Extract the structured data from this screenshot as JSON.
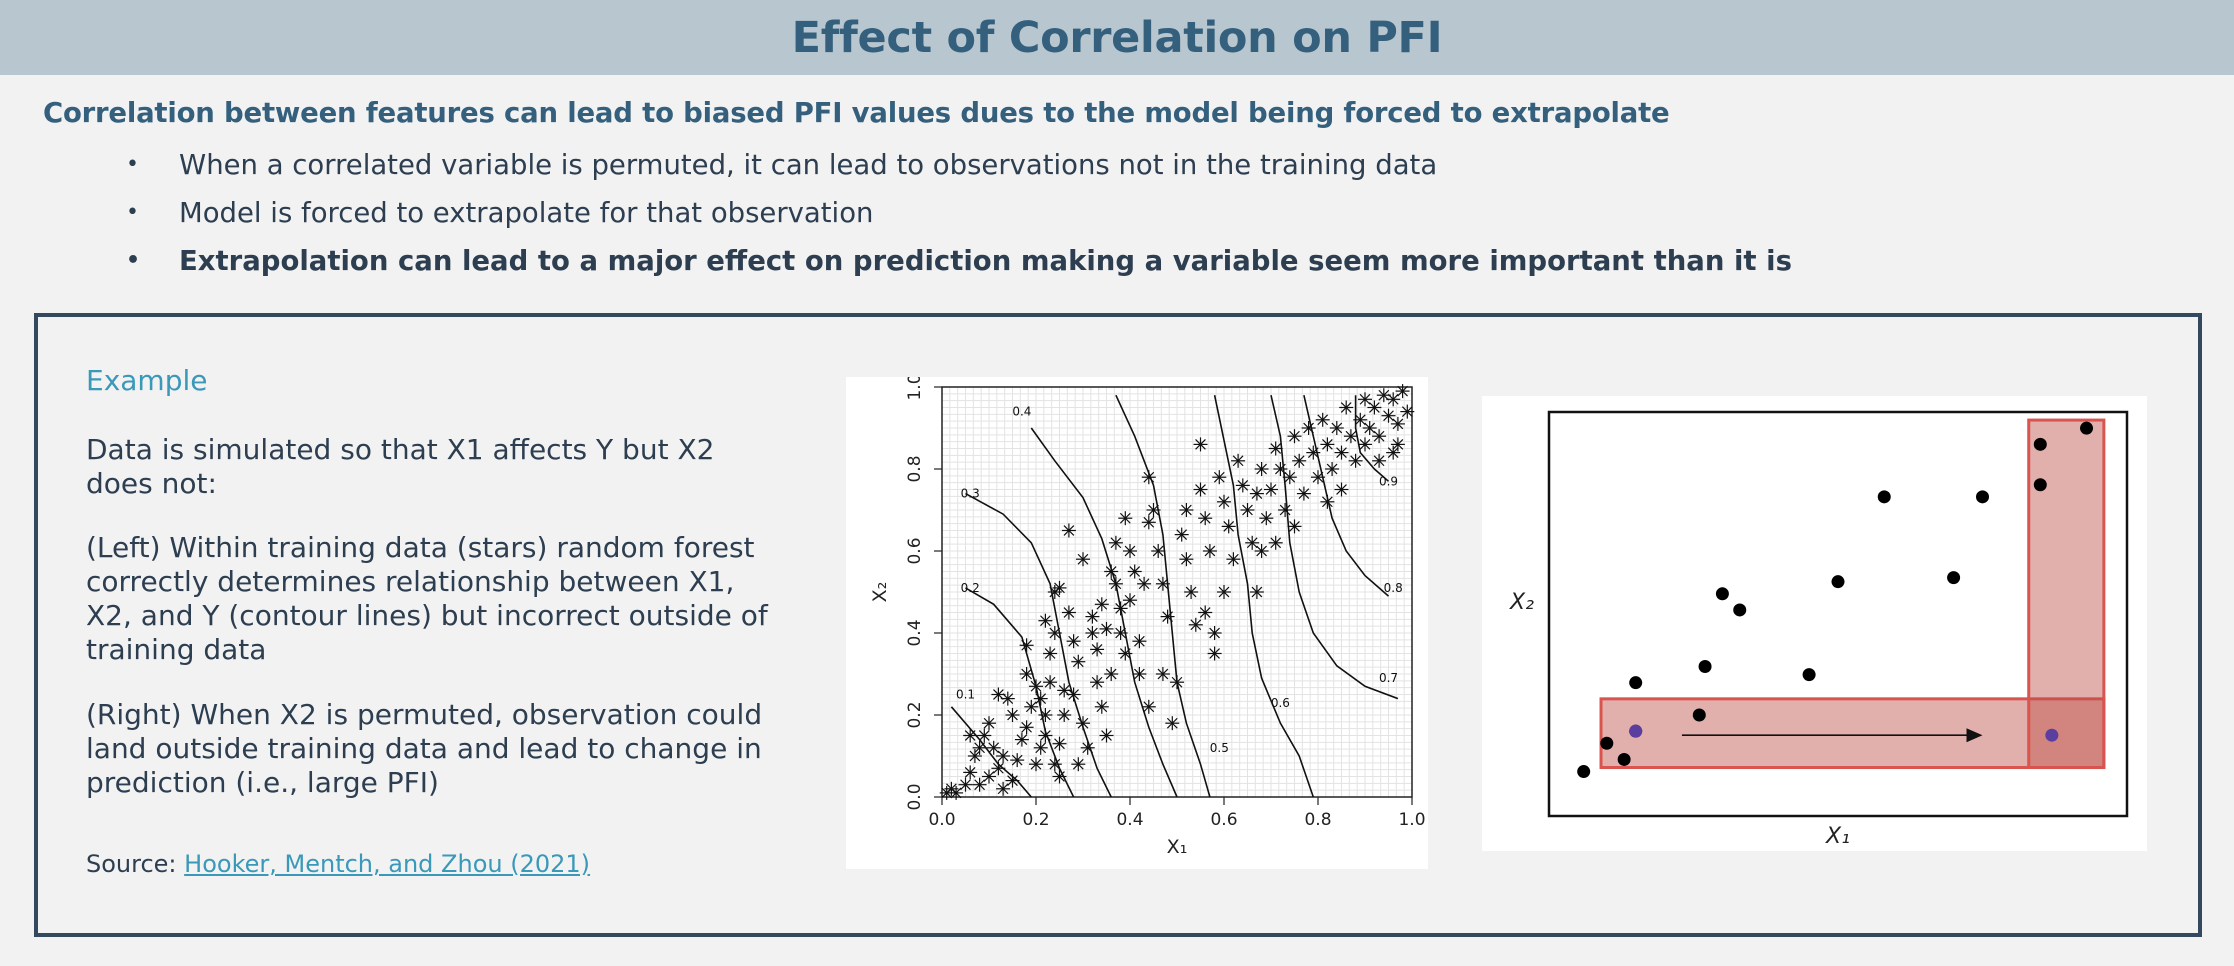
{
  "header": {
    "title": "Effect of Correlation on PFI"
  },
  "intro": {
    "subtitle": "Correlation between features can lead to biased PFI values dues to the model being forced to extrapolate",
    "bullets": [
      "When a correlated variable is permuted, it can lead to observations not in the training data",
      "Model is forced to extrapolate for that observation",
      "Extrapolation can lead to a major effect on prediction making a variable seem more important than it is"
    ],
    "bullet_symbol": "•"
  },
  "example": {
    "title": "Example",
    "para1": "Data is simulated so that X1 affects Y but X2 does not:",
    "para2": "(Left) Within training data (stars) random forest correctly determines relationship between X1, X2, and Y (contour lines) but incorrect outside of training data",
    "para3": "(Right) When X2 is permuted, observation could land outside training data and lead to change in prediction (i.e., large PFI)",
    "source_prefix": "Source: ",
    "source_link": "Hooker, Mentch, and Zhou (2021)"
  },
  "colors": {
    "header_bg": "#b8c7cf",
    "title_color": "#34607d",
    "accent_blue": "#3a98b9",
    "box_border": "#34495e",
    "highlight_red": "#d9534f",
    "permuted_point": "#5b3fa0"
  },
  "chart_data": [
    {
      "type": "scatter",
      "title": "",
      "xlabel": "X₁",
      "ylabel": "X₂",
      "xlim": [
        0,
        1
      ],
      "ylim": [
        0,
        1
      ],
      "xticks": [
        "0.0",
        "0.2",
        "0.4",
        "0.6",
        "0.8",
        "1.0"
      ],
      "yticks": [
        "0.0",
        "0.2",
        "0.4",
        "0.6",
        "0.8",
        "1.0"
      ],
      "marker": "star",
      "grid": true,
      "contour_labels": [
        {
          "label": "0.1",
          "x": 0.05,
          "y": 0.24
        },
        {
          "label": "0.2",
          "x": 0.06,
          "y": 0.5
        },
        {
          "label": "0.3",
          "x": 0.06,
          "y": 0.73
        },
        {
          "label": "0.4",
          "x": 0.17,
          "y": 0.93
        },
        {
          "label": "0.5",
          "x": 0.59,
          "y": 0.11
        },
        {
          "label": "0.6",
          "x": 0.72,
          "y": 0.22
        },
        {
          "label": "0.7",
          "x": 0.95,
          "y": 0.28
        },
        {
          "label": "0.8",
          "x": 0.96,
          "y": 0.5
        },
        {
          "label": "0.9",
          "x": 0.95,
          "y": 0.76
        }
      ],
      "contours": [
        [
          [
            0.02,
            0.22
          ],
          [
            0.08,
            0.14
          ],
          [
            0.12,
            0.08
          ],
          [
            0.16,
            0.04
          ],
          [
            0.19,
            0.0
          ]
        ],
        [
          [
            0.05,
            0.51
          ],
          [
            0.11,
            0.47
          ],
          [
            0.17,
            0.39
          ],
          [
            0.2,
            0.27
          ],
          [
            0.22,
            0.16
          ],
          [
            0.25,
            0.07
          ],
          [
            0.28,
            0.0
          ]
        ],
        [
          [
            0.05,
            0.74
          ],
          [
            0.13,
            0.69
          ],
          [
            0.19,
            0.62
          ],
          [
            0.23,
            0.52
          ],
          [
            0.25,
            0.4
          ],
          [
            0.27,
            0.28
          ],
          [
            0.3,
            0.17
          ],
          [
            0.33,
            0.07
          ],
          [
            0.36,
            0.0
          ]
        ],
        [
          [
            0.19,
            0.9
          ],
          [
            0.24,
            0.82
          ],
          [
            0.3,
            0.73
          ],
          [
            0.34,
            0.63
          ],
          [
            0.37,
            0.52
          ],
          [
            0.39,
            0.4
          ],
          [
            0.41,
            0.28
          ],
          [
            0.44,
            0.17
          ],
          [
            0.47,
            0.08
          ],
          [
            0.5,
            0.0
          ]
        ],
        [
          [
            0.37,
            0.98
          ],
          [
            0.41,
            0.88
          ],
          [
            0.45,
            0.76
          ],
          [
            0.47,
            0.64
          ],
          [
            0.48,
            0.52
          ],
          [
            0.49,
            0.4
          ],
          [
            0.5,
            0.28
          ],
          [
            0.52,
            0.18
          ],
          [
            0.55,
            0.08
          ],
          [
            0.57,
            0.0
          ]
        ],
        [
          [
            0.58,
            0.98
          ],
          [
            0.6,
            0.87
          ],
          [
            0.62,
            0.76
          ],
          [
            0.63,
            0.64
          ],
          [
            0.65,
            0.52
          ],
          [
            0.66,
            0.4
          ],
          [
            0.68,
            0.29
          ],
          [
            0.72,
            0.18
          ],
          [
            0.76,
            0.1
          ],
          [
            0.79,
            0.0
          ]
        ],
        [
          [
            0.7,
            0.98
          ],
          [
            0.72,
            0.88
          ],
          [
            0.73,
            0.76
          ],
          [
            0.74,
            0.62
          ],
          [
            0.76,
            0.5
          ],
          [
            0.79,
            0.4
          ],
          [
            0.84,
            0.32
          ],
          [
            0.9,
            0.27
          ],
          [
            0.97,
            0.24
          ]
        ],
        [
          [
            0.77,
            0.98
          ],
          [
            0.79,
            0.88
          ],
          [
            0.81,
            0.78
          ],
          [
            0.83,
            0.68
          ],
          [
            0.86,
            0.6
          ],
          [
            0.9,
            0.54
          ],
          [
            0.95,
            0.49
          ]
        ],
        [
          [
            0.88,
            0.98
          ],
          [
            0.88,
            0.9
          ],
          [
            0.89,
            0.84
          ],
          [
            0.92,
            0.8
          ],
          [
            0.95,
            0.77
          ]
        ]
      ],
      "points": [
        [
          0.01,
          0.01
        ],
        [
          0.02,
          0.02
        ],
        [
          0.03,
          0.01
        ],
        [
          0.05,
          0.03
        ],
        [
          0.06,
          0.06
        ],
        [
          0.07,
          0.1
        ],
        [
          0.08,
          0.12
        ],
        [
          0.06,
          0.15
        ],
        [
          0.09,
          0.15
        ],
        [
          0.1,
          0.18
        ],
        [
          0.08,
          0.03
        ],
        [
          0.1,
          0.05
        ],
        [
          0.12,
          0.07
        ],
        [
          0.11,
          0.12
        ],
        [
          0.13,
          0.1
        ],
        [
          0.12,
          0.25
        ],
        [
          0.14,
          0.24
        ],
        [
          0.15,
          0.2
        ],
        [
          0.13,
          0.02
        ],
        [
          0.15,
          0.04
        ],
        [
          0.16,
          0.09
        ],
        [
          0.17,
          0.14
        ],
        [
          0.18,
          0.17
        ],
        [
          0.19,
          0.22
        ],
        [
          0.18,
          0.3
        ],
        [
          0.2,
          0.27
        ],
        [
          0.21,
          0.24
        ],
        [
          0.2,
          0.08
        ],
        [
          0.21,
          0.12
        ],
        [
          0.22,
          0.15
        ],
        [
          0.22,
          0.2
        ],
        [
          0.23,
          0.28
        ],
        [
          0.23,
          0.35
        ],
        [
          0.24,
          0.4
        ],
        [
          0.22,
          0.43
        ],
        [
          0.24,
          0.08
        ],
        [
          0.25,
          0.05
        ],
        [
          0.25,
          0.13
        ],
        [
          0.26,
          0.2
        ],
        [
          0.26,
          0.26
        ],
        [
          0.24,
          0.5
        ],
        [
          0.25,
          0.51
        ],
        [
          0.27,
          0.45
        ],
        [
          0.28,
          0.38
        ],
        [
          0.29,
          0.33
        ],
        [
          0.28,
          0.25
        ],
        [
          0.3,
          0.18
        ],
        [
          0.31,
          0.12
        ],
        [
          0.29,
          0.08
        ],
        [
          0.32,
          0.4
        ],
        [
          0.33,
          0.36
        ],
        [
          0.32,
          0.44
        ],
        [
          0.34,
          0.47
        ],
        [
          0.35,
          0.41
        ],
        [
          0.33,
          0.28
        ],
        [
          0.34,
          0.22
        ],
        [
          0.35,
          0.15
        ],
        [
          0.36,
          0.55
        ],
        [
          0.37,
          0.52
        ],
        [
          0.38,
          0.46
        ],
        [
          0.38,
          0.4
        ],
        [
          0.39,
          0.35
        ],
        [
          0.37,
          0.62
        ],
        [
          0.39,
          0.68
        ],
        [
          0.4,
          0.6
        ],
        [
          0.41,
          0.55
        ],
        [
          0.4,
          0.48
        ],
        [
          0.42,
          0.38
        ],
        [
          0.42,
          0.3
        ],
        [
          0.44,
          0.22
        ],
        [
          0.43,
          0.52
        ],
        [
          0.45,
          0.7
        ],
        [
          0.44,
          0.78
        ],
        [
          0.46,
          0.6
        ],
        [
          0.47,
          0.52
        ],
        [
          0.48,
          0.44
        ],
        [
          0.5,
          0.28
        ],
        [
          0.49,
          0.18
        ],
        [
          0.51,
          0.64
        ],
        [
          0.52,
          0.58
        ],
        [
          0.53,
          0.5
        ],
        [
          0.54,
          0.42
        ],
        [
          0.52,
          0.7
        ],
        [
          0.55,
          0.75
        ],
        [
          0.56,
          0.68
        ],
        [
          0.57,
          0.6
        ],
        [
          0.56,
          0.45
        ],
        [
          0.58,
          0.35
        ],
        [
          0.59,
          0.78
        ],
        [
          0.6,
          0.72
        ],
        [
          0.61,
          0.66
        ],
        [
          0.62,
          0.58
        ],
        [
          0.6,
          0.5
        ],
        [
          0.63,
          0.82
        ],
        [
          0.64,
          0.76
        ],
        [
          0.65,
          0.7
        ],
        [
          0.66,
          0.62
        ],
        [
          0.67,
          0.74
        ],
        [
          0.68,
          0.8
        ],
        [
          0.69,
          0.68
        ],
        [
          0.68,
          0.6
        ],
        [
          0.7,
          0.75
        ],
        [
          0.71,
          0.85
        ],
        [
          0.72,
          0.8
        ],
        [
          0.73,
          0.7
        ],
        [
          0.74,
          0.78
        ],
        [
          0.75,
          0.88
        ],
        [
          0.76,
          0.82
        ],
        [
          0.77,
          0.74
        ],
        [
          0.78,
          0.9
        ],
        [
          0.79,
          0.84
        ],
        [
          0.8,
          0.78
        ],
        [
          0.81,
          0.92
        ],
        [
          0.82,
          0.86
        ],
        [
          0.83,
          0.8
        ],
        [
          0.82,
          0.72
        ],
        [
          0.84,
          0.9
        ],
        [
          0.85,
          0.84
        ],
        [
          0.86,
          0.95
        ],
        [
          0.87,
          0.88
        ],
        [
          0.88,
          0.82
        ],
        [
          0.85,
          0.75
        ],
        [
          0.89,
          0.92
        ],
        [
          0.9,
          0.86
        ],
        [
          0.9,
          0.97
        ],
        [
          0.91,
          0.9
        ],
        [
          0.92,
          0.95
        ],
        [
          0.93,
          0.88
        ],
        [
          0.94,
          0.98
        ],
        [
          0.95,
          0.93
        ],
        [
          0.96,
          0.97
        ],
        [
          0.97,
          0.91
        ],
        [
          0.98,
          0.99
        ],
        [
          0.97,
          0.86
        ],
        [
          0.99,
          0.94
        ],
        [
          0.96,
          0.84
        ],
        [
          0.93,
          0.82
        ],
        [
          0.27,
          0.65
        ],
        [
          0.18,
          0.37
        ],
        [
          0.3,
          0.58
        ],
        [
          0.47,
          0.3
        ],
        [
          0.58,
          0.4
        ],
        [
          0.67,
          0.5
        ],
        [
          0.75,
          0.66
        ],
        [
          0.55,
          0.86
        ],
        [
          0.44,
          0.67
        ],
        [
          0.71,
          0.62
        ],
        [
          0.36,
          0.3
        ]
      ]
    },
    {
      "type": "scatter",
      "title": "",
      "xlabel": "X₁",
      "ylabel": "X₂",
      "xlim": [
        0,
        1
      ],
      "ylim": [
        0,
        1
      ],
      "points": [
        [
          0.06,
          0.11
        ],
        [
          0.1,
          0.18
        ],
        [
          0.13,
          0.14
        ],
        [
          0.15,
          0.33
        ],
        [
          0.26,
          0.25
        ],
        [
          0.27,
          0.37
        ],
        [
          0.3,
          0.55
        ],
        [
          0.33,
          0.51
        ],
        [
          0.45,
          0.35
        ],
        [
          0.5,
          0.58
        ],
        [
          0.58,
          0.79
        ],
        [
          0.7,
          0.59
        ],
        [
          0.75,
          0.79
        ],
        [
          0.85,
          0.92
        ],
        [
          0.85,
          0.82
        ],
        [
          0.93,
          0.96
        ],
        [
          0.15,
          0.21
        ]
      ],
      "permuted_points": [
        [
          0.15,
          0.21
        ],
        [
          0.87,
          0.2
        ]
      ],
      "highlight_regions": [
        {
          "name": "training-x1-band",
          "x": [
            0.09,
            0.96
          ],
          "y": [
            0.12,
            0.29
          ]
        },
        {
          "name": "training-x2-band",
          "x": [
            0.83,
            0.96
          ],
          "y": [
            0.12,
            0.98
          ]
        }
      ],
      "arrow": {
        "from": [
          0.23,
          0.2
        ],
        "to": [
          0.75,
          0.2
        ]
      }
    }
  ]
}
